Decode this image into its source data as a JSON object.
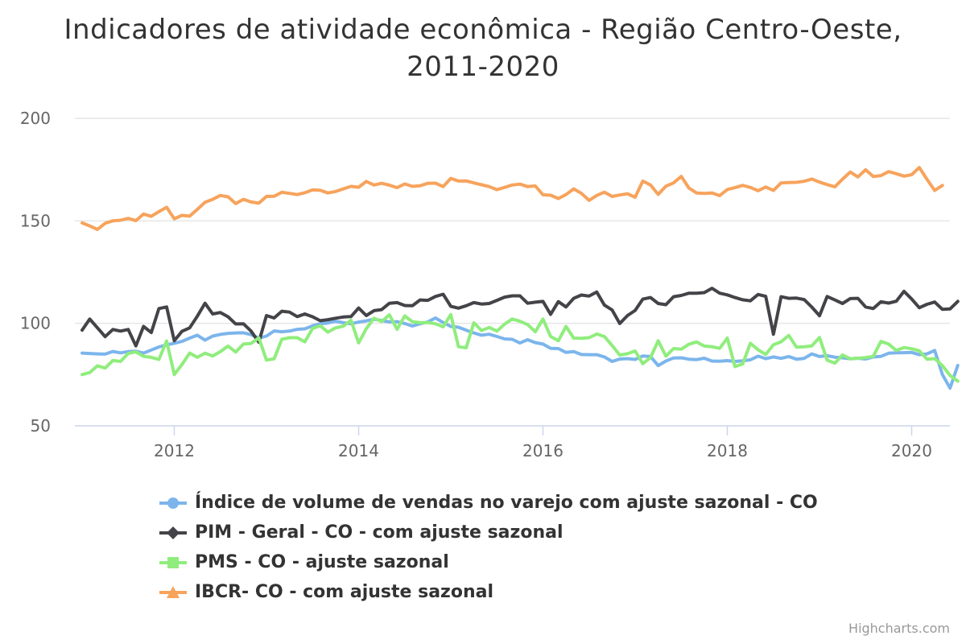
{
  "chart_data": {
    "type": "line",
    "title": "Indicadores de atividade econômica - Região Centro-Oeste, 2011-2020",
    "title_lines": [
      "Indicadores de atividade econômica - Região Centro-Oeste,",
      "2011-2020"
    ],
    "x_tick_labels": [
      "2012",
      "2014",
      "2016",
      "2018",
      "2020"
    ],
    "y_tick_labels": [
      "50",
      "100",
      "150",
      "200"
    ],
    "ylim": [
      50,
      200
    ],
    "x_start": "2011-01",
    "x_end": "2020-05",
    "frequency": "monthly",
    "grid": "horizontal",
    "legend_position": "bottom",
    "series": [
      {
        "name": "Índice de volume de vendas no varejo com ajuste sazonal - CO",
        "color": "#7cb5ec",
        "marker": "circle",
        "values": [
          85.5,
          85.3,
          85.1,
          85.0,
          86.3,
          85.6,
          86.2,
          86.4,
          85.5,
          87.0,
          88.5,
          89.5,
          90.3,
          91.2,
          92.8,
          94.2,
          91.8,
          93.8,
          94.6,
          95.1,
          95.3,
          95.4,
          94.5,
          92.8,
          93.8,
          96.3,
          95.9,
          96.2,
          97.1,
          97.3,
          98.8,
          99.8,
          100.2,
          101.0,
          100.3,
          99.8,
          100.6,
          101.2,
          102.0,
          101.4,
          100.7,
          100.8,
          99.9,
          98.7,
          99.8,
          100.7,
          102.6,
          100.4,
          98.5,
          98.1,
          96.7,
          95.3,
          94.2,
          94.7,
          93.6,
          92.4,
          92.2,
          90.4,
          92.0,
          90.6,
          89.9,
          87.8,
          87.7,
          85.8,
          86.2,
          84.8,
          84.7,
          84.7,
          83.6,
          81.4,
          82.6,
          82.8,
          82.4,
          84.1,
          83.8,
          79.4,
          81.6,
          83.1,
          83.2,
          82.5,
          82.3,
          83.0,
          81.6,
          81.5,
          81.8,
          81.4,
          81.7,
          82.2,
          84.0,
          82.8,
          83.6,
          82.9,
          83.8,
          82.5,
          82.9,
          85.1,
          83.8,
          84.2,
          83.5,
          83.2,
          82.7,
          83.0,
          82.6,
          83.6,
          83.9,
          85.4,
          85.6,
          85.7,
          85.8,
          84.7,
          85.1,
          86.8,
          75.0,
          68.4,
          79.5
        ]
      },
      {
        "name": "PIM - Geral - CO - com ajuste sazonal",
        "color": "#434348",
        "marker": "diamond",
        "values": [
          96.7,
          102.1,
          97.8,
          93.5,
          97.0,
          96.2,
          97.0,
          89.0,
          98.5,
          95.5,
          107.2,
          108.0,
          91.5,
          96.1,
          97.8,
          103.5,
          109.8,
          104.6,
          105.3,
          103.2,
          99.7,
          99.8,
          96.2,
          90.8,
          103.8,
          102.6,
          105.9,
          105.5,
          103.3,
          104.6,
          103.2,
          101.3,
          101.8,
          102.5,
          103.1,
          103.3,
          107.5,
          103.8,
          106.2,
          106.7,
          109.8,
          110.1,
          108.7,
          108.6,
          111.4,
          111.2,
          113.1,
          114.2,
          108.3,
          107.4,
          108.6,
          110.1,
          109.4,
          109.7,
          111.2,
          112.8,
          113.4,
          113.4,
          109.8,
          110.3,
          110.7,
          104.4,
          110.6,
          108.0,
          112.2,
          113.8,
          113.3,
          115.3,
          108.9,
          106.5,
          99.9,
          103.8,
          106.3,
          111.8,
          112.6,
          109.7,
          109.1,
          113.0,
          113.6,
          114.7,
          114.7,
          115.0,
          117.1,
          114.7,
          113.9,
          112.6,
          111.5,
          111.0,
          114.1,
          113.2,
          94.7,
          113.0,
          112.2,
          112.3,
          111.6,
          107.9,
          103.7,
          113.1,
          111.4,
          109.7,
          112.1,
          112.2,
          108.0,
          107.2,
          110.5,
          109.9,
          110.8,
          115.6,
          111.9,
          107.6,
          109.3,
          110.4,
          106.8,
          107.0,
          110.7
        ]
      },
      {
        "name": "PMS - CO - ajuste sazonal",
        "color": "#90ed7d",
        "marker": "square",
        "values": [
          75.0,
          76.0,
          79.3,
          78.2,
          81.9,
          81.4,
          85.3,
          86.1,
          83.9,
          83.4,
          82.4,
          91.4,
          75.0,
          79.9,
          85.5,
          83.4,
          85.4,
          84.1,
          86.2,
          88.9,
          86.0,
          89.9,
          90.2,
          92.9,
          82.1,
          82.7,
          92.2,
          93.0,
          93.0,
          91.0,
          97.5,
          98.8,
          95.7,
          97.8,
          98.6,
          101.5,
          90.5,
          97.4,
          102.5,
          100.9,
          104.2,
          97.1,
          103.6,
          100.8,
          100.3,
          100.4,
          99.8,
          98.3,
          104.3,
          88.6,
          88.1,
          100.3,
          96.5,
          98.0,
          96.2,
          99.6,
          102.1,
          101.0,
          99.4,
          95.9,
          102.1,
          93.6,
          91.5,
          98.5,
          92.8,
          92.7,
          93.0,
          94.8,
          93.6,
          89.2,
          84.5,
          85.2,
          86.5,
          80.3,
          83.3,
          91.5,
          84.0,
          87.7,
          87.4,
          89.8,
          90.9,
          88.9,
          88.6,
          87.8,
          92.8,
          78.9,
          80.2,
          90.3,
          87.1,
          84.8,
          89.6,
          91.0,
          94.1,
          88.4,
          88.6,
          89.0,
          93.1,
          82.1,
          80.6,
          84.6,
          82.7,
          83.0,
          83.3,
          83.9,
          91.2,
          89.9,
          86.8,
          88.2,
          87.6,
          86.6,
          82.5,
          82.8,
          79.4,
          74.6,
          71.8
        ]
      },
      {
        "name": "IBCR- CO - com ajuste sazonal",
        "color": "#f7a35c",
        "marker": "triangle",
        "values": [
          149.0,
          147.5,
          145.8,
          148.8,
          150.0,
          150.3,
          151.2,
          150.1,
          153.3,
          152.2,
          154.5,
          156.6,
          151.0,
          152.7,
          152.3,
          155.6,
          159.1,
          160.5,
          162.4,
          161.7,
          158.4,
          160.5,
          159.2,
          158.6,
          161.9,
          162.0,
          163.9,
          163.4,
          162.8,
          163.7,
          165.1,
          164.9,
          163.6,
          164.3,
          165.6,
          166.8,
          166.4,
          169.2,
          167.5,
          168.3,
          167.4,
          166.2,
          168.0,
          166.8,
          167.1,
          168.3,
          168.4,
          166.7,
          170.7,
          169.4,
          169.5,
          168.5,
          167.6,
          166.7,
          165.2,
          166.3,
          167.5,
          167.9,
          166.7,
          167.0,
          162.7,
          162.5,
          160.9,
          162.8,
          165.6,
          163.4,
          160.0,
          162.4,
          164.0,
          161.9,
          162.6,
          163.2,
          161.5,
          169.4,
          167.5,
          162.9,
          166.9,
          168.5,
          171.7,
          166.0,
          163.6,
          163.4,
          163.6,
          162.3,
          165.3,
          166.2,
          167.3,
          166.3,
          164.7,
          166.5,
          164.8,
          168.5,
          168.7,
          168.8,
          169.3,
          170.4,
          168.9,
          167.7,
          166.6,
          170.3,
          173.8,
          171.4,
          174.9,
          171.6,
          172.1,
          174.0,
          173.0,
          171.8,
          172.5,
          176.0,
          170.2,
          164.8,
          167.3
        ]
      }
    ]
  },
  "credits": "Highcharts.com"
}
